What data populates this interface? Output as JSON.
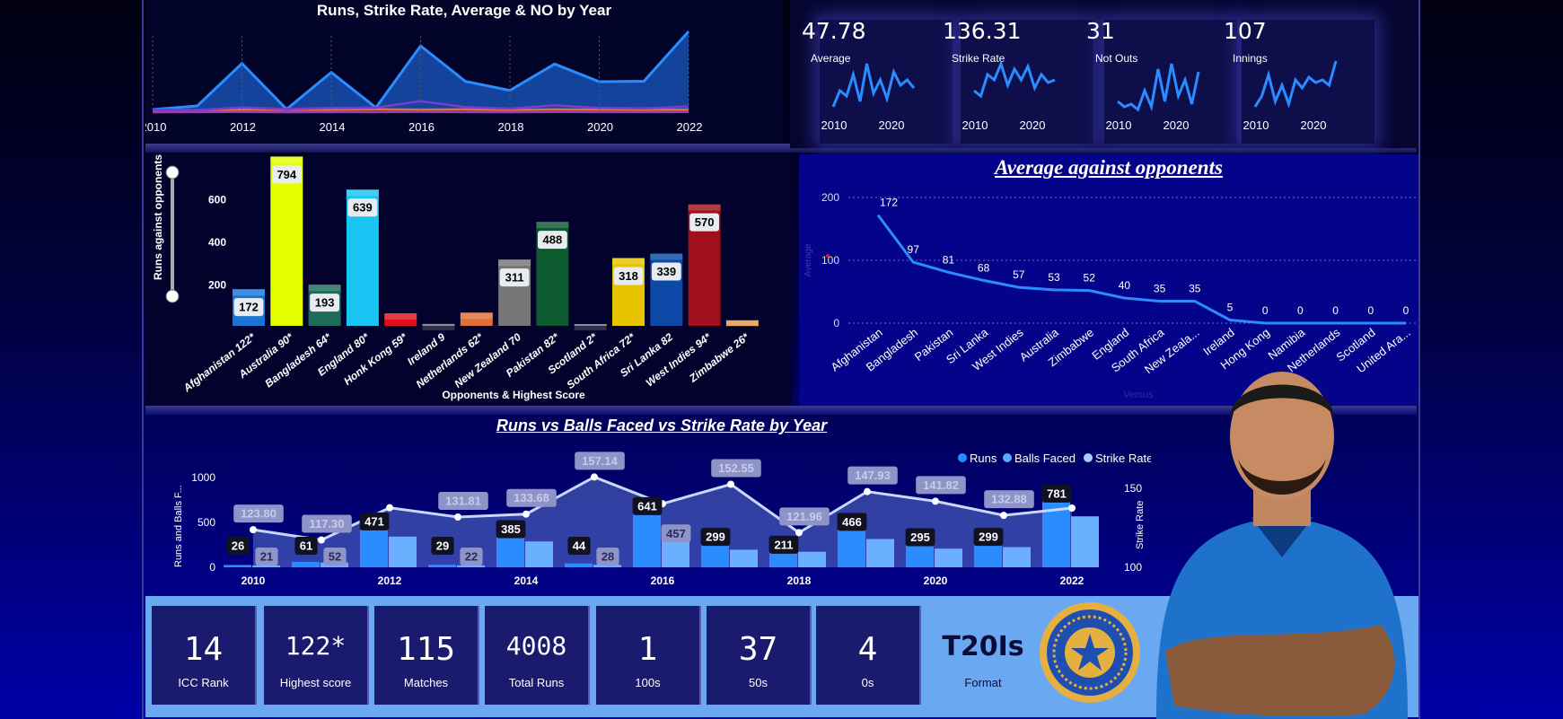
{
  "colors": {
    "accent": "#1e90ff",
    "orange": "#e0703a",
    "light": "#a8c0ff"
  },
  "kpis": [
    {
      "value": "47.78",
      "label": "Average",
      "x": [
        "2010",
        "2020"
      ],
      "trend": [
        10,
        40,
        30,
        70,
        20,
        90,
        35,
        60,
        25,
        75,
        50,
        60,
        45
      ]
    },
    {
      "value": "136.31",
      "label": "Strike Rate",
      "x": [
        "2010",
        "2020"
      ],
      "trend": [
        40,
        30,
        70,
        60,
        90,
        50,
        80,
        60,
        85,
        45,
        70,
        55,
        60
      ]
    },
    {
      "value": "31",
      "label": "Not Outs",
      "x": [
        "2010",
        "2020"
      ],
      "trend": [
        20,
        10,
        15,
        5,
        40,
        10,
        80,
        20,
        90,
        30,
        60,
        15,
        75
      ]
    },
    {
      "value": "107",
      "label": "Innings",
      "x": [
        "2010",
        "2020"
      ],
      "trend": [
        10,
        30,
        70,
        20,
        50,
        15,
        60,
        45,
        65,
        55,
        60,
        50,
        95
      ]
    }
  ],
  "stats": [
    {
      "value": "14",
      "label": "ICC Rank"
    },
    {
      "value": "122*",
      "label": "Highest score"
    },
    {
      "value": "115",
      "label": "Matches"
    },
    {
      "value": "4008",
      "label": "Total Runs"
    },
    {
      "value": "1",
      "label": "100s"
    },
    {
      "value": "37",
      "label": "50s"
    },
    {
      "value": "4",
      "label": "0s"
    }
  ],
  "format": {
    "value": "T20Is",
    "label": "Format"
  },
  "chart_data": [
    {
      "type": "area",
      "title": "Runs, Strike Rate, Average & NO by Year",
      "x": [
        2010,
        2011,
        2012,
        2013,
        2014,
        2015,
        2016,
        2017,
        2018,
        2019,
        2020,
        2021,
        2022
      ],
      "xticks": [
        "2010",
        "2012",
        "2014",
        "2016",
        "2018",
        "2020",
        "2022"
      ],
      "series": [
        {
          "values": [
            26,
            61,
            471,
            29,
            385,
            44,
            641,
            299,
            211,
            466,
            295,
            299,
            781
          ]
        },
        {
          "values": [
            123.8,
            117.3,
            137.7,
            131.81,
            133.68,
            157.14,
            140.26,
            152.55,
            121.96,
            147.93,
            141.82,
            132.88,
            137.5
          ]
        },
        {
          "values": [
            26,
            20,
            47,
            29,
            42,
            44,
            106,
            50,
            35,
            66,
            42,
            37,
            56
          ]
        },
        {
          "values": [
            0,
            1,
            2,
            0,
            1,
            1,
            3,
            1,
            0,
            2,
            1,
            1,
            2
          ]
        }
      ]
    },
    {
      "type": "bar",
      "title": "",
      "xlabel": "Opponents & Highest Score",
      "ylabel": "Runs against opponents",
      "yticks": [
        "200",
        "400",
        "600"
      ],
      "categories": [
        "Afghanistan 122*",
        "Australia 90*",
        "Bangladesh 64*",
        "England 80*",
        "Honk Kong 59*",
        "Ireland 9",
        "Netherlands 62*",
        "New Zealand 70",
        "Pakistan 82*",
        "Scotland 2*",
        "South Africa 72*",
        "Sri Lanka 82",
        "West Indies 94*",
        "Zimbabwe 26*"
      ],
      "values": [
        172,
        794,
        193,
        639,
        59,
        9,
        62,
        311,
        488,
        2,
        318,
        339,
        570,
        26
      ],
      "labels": [
        "172",
        "794",
        "193",
        "639",
        "",
        "",
        "",
        "311",
        "488",
        "",
        "318",
        "339",
        "570",
        ""
      ],
      "bar_colors": [
        "#1a74d6",
        "#e4ff00",
        "#1f6b5a",
        "#19c5f2",
        "#e0101a",
        "#777777",
        "#e0703a",
        "#777777",
        "#0c5a2e",
        "#777777",
        "#e6c400",
        "#0d4aa8",
        "#a0101a",
        "#e09a40"
      ]
    },
    {
      "type": "line",
      "title": "Average against opponents",
      "xlabel": "Versus",
      "ylabel": "Average",
      "yticks": [
        "0",
        "100",
        "200"
      ],
      "ylim": [
        0,
        200
      ],
      "categories": [
        "Afghanistan",
        "Bangladesh",
        "Pakistan",
        "Sri Lanka",
        "West Indies",
        "Australia",
        "Zimbabwe",
        "England",
        "South Africa",
        "New Zeala...",
        "Ireland",
        "Hong Kong",
        "Namibia",
        "Netherlands",
        "Scotland",
        "United Ara..."
      ],
      "values": [
        172,
        97,
        81,
        68,
        57,
        53,
        52,
        40,
        35,
        35,
        5,
        0,
        0,
        0,
        0,
        0
      ],
      "labels": [
        "172",
        "97",
        "81",
        "68",
        "57",
        "53",
        "52",
        "40",
        "35",
        "35",
        "5",
        "0",
        "0",
        "0",
        "0",
        "0"
      ]
    },
    {
      "type": "bar",
      "title": "Runs vs Balls Faced vs Strike Rate by Year",
      "ylabel": "Runs and Balls F...",
      "y2label": "Strike Rate",
      "yticks": [
        "0",
        "500",
        "1000"
      ],
      "y2ticks": [
        "100",
        "150"
      ],
      "xticks": [
        "2010",
        "2012",
        "2014",
        "2016",
        "2018",
        "2020",
        "2022"
      ],
      "legend": [
        "Runs",
        "Balls Faced",
        "Strike Rate"
      ],
      "x": [
        2010,
        2011,
        2012,
        2013,
        2014,
        2015,
        2016,
        2017,
        2018,
        2019,
        2020,
        2021,
        2022
      ],
      "series": [
        {
          "name": "Runs",
          "values": [
            26,
            61,
            471,
            29,
            385,
            44,
            641,
            299,
            211,
            466,
            295,
            299,
            781
          ]
        },
        {
          "name": "Balls Faced",
          "values": [
            21,
            52,
            342,
            22,
            288,
            28,
            457,
            196,
            173,
            315,
            208,
            225,
            568
          ]
        },
        {
          "name": "Strike Rate",
          "values": [
            123.8,
            117.3,
            137.7,
            131.81,
            133.68,
            157.14,
            140.26,
            152.55,
            121.96,
            147.93,
            141.82,
            132.88,
            137.5
          ]
        }
      ],
      "runs_labels": [
        "26",
        "61",
        "471",
        "29",
        "385",
        "44",
        "641",
        "299",
        "211",
        "466",
        "295",
        "299",
        "781"
      ],
      "balls_labels": [
        "21",
        "52",
        "",
        "22",
        "",
        "28",
        "457",
        "",
        "",
        "",
        "",
        "",
        ""
      ],
      "sr_labels": [
        "123.80",
        "117.30",
        "",
        "131.81",
        "133.68",
        "157.14",
        "",
        "152.55",
        "121.96",
        "147.93",
        "141.82",
        "132.88",
        ""
      ]
    }
  ]
}
